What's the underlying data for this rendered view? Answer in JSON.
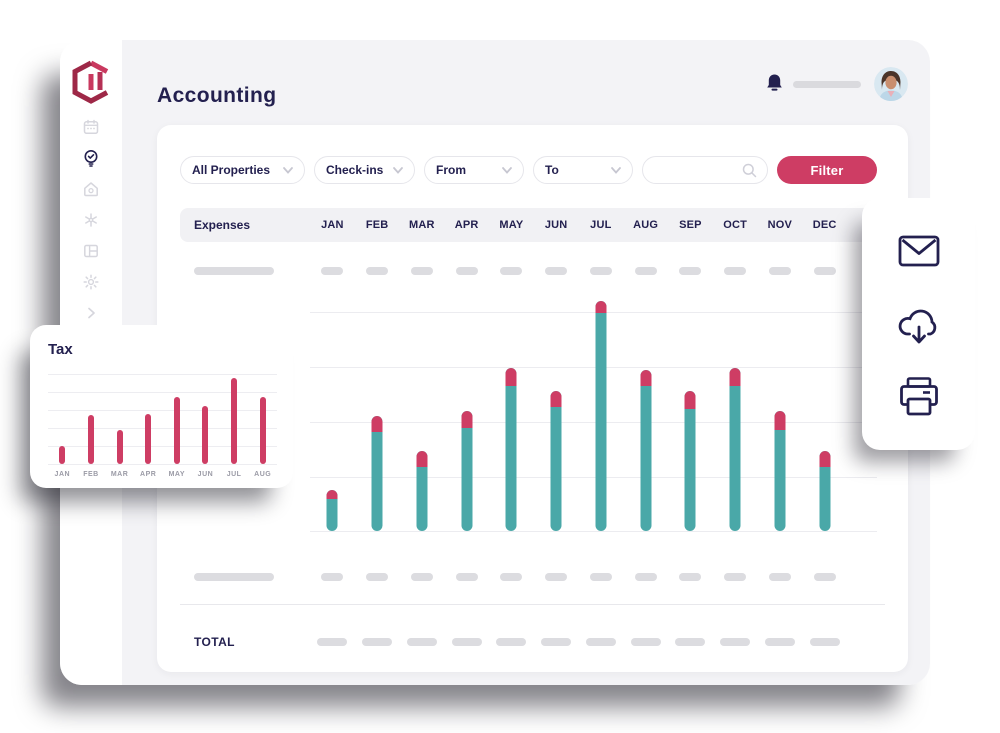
{
  "app": {
    "title": "Accounting"
  },
  "sidebar": {
    "items": [
      {
        "icon": "calendar",
        "active": false
      },
      {
        "icon": "lightbulb-check",
        "active": true
      },
      {
        "icon": "home",
        "active": false
      },
      {
        "icon": "snowflake",
        "active": false
      },
      {
        "icon": "layout",
        "active": false
      },
      {
        "icon": "gear",
        "active": false
      },
      {
        "icon": "chevron-right",
        "active": false
      }
    ]
  },
  "filters": {
    "dropdowns": [
      {
        "label": "All Properties"
      },
      {
        "label": "Check-ins"
      },
      {
        "label": "From"
      },
      {
        "label": "To"
      }
    ],
    "search_placeholder": "",
    "filter_button": "Filter"
  },
  "table": {
    "first_column": "Expenses",
    "months": [
      "JAN",
      "FEB",
      "MAR",
      "APR",
      "MAY",
      "JUN",
      "JUL",
      "AUG",
      "SEP",
      "OCT",
      "NOV",
      "DEC"
    ],
    "total_label": "TOTAL"
  },
  "action_panel": {
    "icons": [
      "mail",
      "cloud-download",
      "printer"
    ]
  },
  "chart_data": [
    {
      "type": "bar",
      "name": "monthly-expenses-bars",
      "categories": [
        "JAN",
        "FEB",
        "MAR",
        "APR",
        "MAY",
        "JUN",
        "JUL",
        "AUG",
        "SEP",
        "OCT",
        "NOV",
        "DEC"
      ],
      "series": [
        {
          "name": "base",
          "color": "#4AA8A8",
          "values": [
            14,
            43,
            28,
            45,
            63,
            54,
            95,
            63,
            53,
            63,
            44,
            28
          ]
        },
        {
          "name": "top-cap",
          "color": "#CE3D64",
          "values": [
            4,
            7,
            7,
            7,
            8,
            7,
            5,
            7,
            8,
            8,
            8,
            7
          ]
        }
      ],
      "ylim": [
        0,
        100
      ],
      "units": "percent_of_chart_height_estimated",
      "grid": true,
      "legend": false
    },
    {
      "type": "bar",
      "name": "tax-mini-bars",
      "title": "Tax",
      "categories": [
        "JAN",
        "FEB",
        "MAR",
        "APR",
        "MAY",
        "JUN",
        "JUL",
        "AUG"
      ],
      "values": [
        20,
        54,
        38,
        56,
        75,
        65,
        96,
        75
      ],
      "color": "#CE3D64",
      "ylim": [
        0,
        100
      ],
      "units": "percent_of_chart_height_estimated",
      "grid": true,
      "legend": false
    }
  ],
  "colors": {
    "navy": "#23204F",
    "crimson": "#CE3D64",
    "teal": "#4AA8A8",
    "backdrop": "#F3F3F6",
    "skeleton": "#DCDCE0",
    "logo_dark": "#9E2847",
    "logo_light": "#C9395F"
  }
}
